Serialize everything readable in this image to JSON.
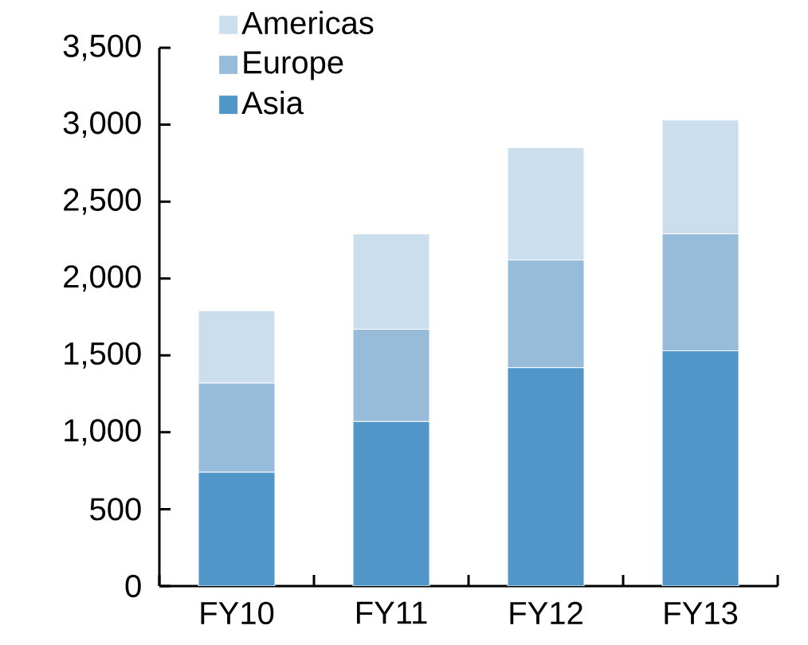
{
  "chart_data": {
    "type": "bar",
    "stacked": true,
    "legend": "top left",
    "categories": [
      "FY10",
      "FY11",
      "FY12",
      "FY13"
    ],
    "series": [
      {
        "name": "Asia",
        "color": "#5096c8",
        "values": [
          740,
          1070,
          1420,
          1530
        ]
      },
      {
        "name": "Europe",
        "color": "#97bcd9",
        "values": [
          580,
          600,
          700,
          760
        ]
      },
      {
        "name": "Americas",
        "color": "#cbdeed",
        "values": [
          470,
          620,
          730,
          740
        ]
      }
    ],
    "ylim": [
      0,
      3500
    ],
    "yticks": [
      0,
      500,
      {
        "value": 1000,
        "label": "1,000"
      },
      {
        "value": 1500,
        "label": "1,500"
      },
      {
        "value": 2000,
        "label": "2,000"
      },
      {
        "value": 2500,
        "label": "2,500"
      },
      {
        "value": 3000,
        "label": "3,000"
      },
      {
        "value": 3500,
        "label": "3,500"
      }
    ]
  }
}
